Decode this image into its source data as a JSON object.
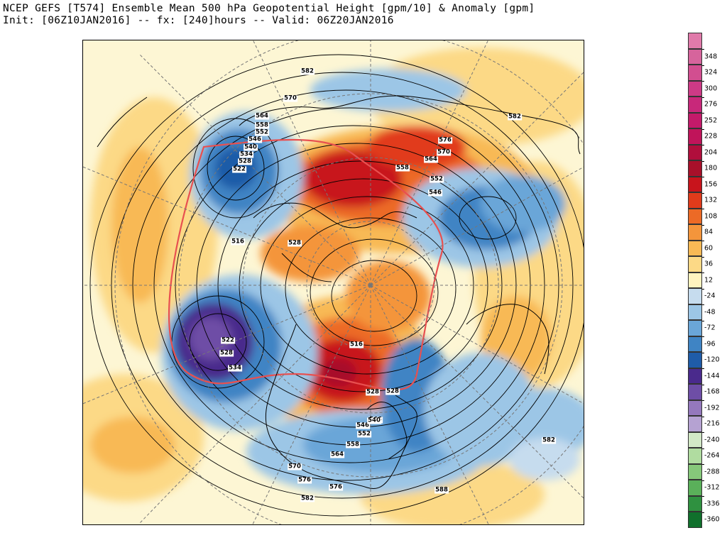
{
  "header": {
    "title_line1": "NCEP GEFS [T574] Ensemble Mean 500 hPa Geopotential Height [gpm/10] & Anomaly [gpm]",
    "title_line2": "Init: [06Z10JAN2016] -- fx: [240]hours -- Valid: 06Z20JAN2016"
  },
  "map": {
    "projection": "polar stereographic, north pole",
    "contour_labels": [
      "582",
      "570",
      "564",
      "558",
      "552",
      "546",
      "540",
      "534",
      "528",
      "522",
      "516",
      "528",
      "522",
      "528",
      "534",
      "516",
      "528",
      "546",
      "570",
      "576",
      "564",
      "558",
      "552",
      "546",
      "540",
      "576",
      "582",
      "570",
      "564",
      "552",
      "558",
      "546",
      "576",
      "582",
      "588",
      "582",
      "528"
    ],
    "anomaly_features": [
      {
        "sign": "negative",
        "strength": "strong",
        "color": "#3b70b8"
      },
      {
        "sign": "positive",
        "strength": "strong",
        "color": "#c81a1e"
      },
      {
        "sign": "negative",
        "strength": "extreme",
        "color": "#5a2a8c"
      }
    ]
  },
  "colorbar": {
    "levels": [
      {
        "label": "348",
        "color": "#d6649c"
      },
      {
        "label": "324",
        "color": "#d24e90"
      },
      {
        "label": "300",
        "color": "#cd3a86"
      },
      {
        "label": "276",
        "color": "#c8287a"
      },
      {
        "label": "252",
        "color": "#c41a6a"
      },
      {
        "label": "228",
        "color": "#c0145a"
      },
      {
        "label": "204",
        "color": "#b00e3c"
      },
      {
        "label": "180",
        "color": "#a8102a"
      },
      {
        "label": "156",
        "color": "#c8141c"
      },
      {
        "label": "132",
        "color": "#e13b1b"
      },
      {
        "label": "108",
        "color": "#ec6a26"
      },
      {
        "label": "84",
        "color": "#f4953b"
      },
      {
        "label": "60",
        "color": "#f8b955"
      },
      {
        "label": "36",
        "color": "#fcd986"
      },
      {
        "label": "12",
        "color": "#fff3bf"
      },
      {
        "label": "-24",
        "color": "#c6dcee"
      },
      {
        "label": "-48",
        "color": "#9cc6e6"
      },
      {
        "label": "-72",
        "color": "#6aa6d8"
      },
      {
        "label": "-96",
        "color": "#3f84c4"
      },
      {
        "label": "-120",
        "color": "#1f5ca8"
      },
      {
        "label": "-144",
        "color": "#4a2a8c"
      },
      {
        "label": "-168",
        "color": "#6e4ea6"
      },
      {
        "label": "-192",
        "color": "#9478bc"
      },
      {
        "label": "-216",
        "color": "#b5a2d2"
      },
      {
        "label": "-240",
        "color": "#d2e8c6"
      },
      {
        "label": "-264",
        "color": "#b0dca0"
      },
      {
        "label": "-288",
        "color": "#86c87a"
      },
      {
        "label": "-312",
        "color": "#5ab05a"
      },
      {
        "label": "-336",
        "color": "#2f9140"
      },
      {
        "label": "-360",
        "color": "#10702c"
      }
    ],
    "top_color": "#e07aaa"
  }
}
